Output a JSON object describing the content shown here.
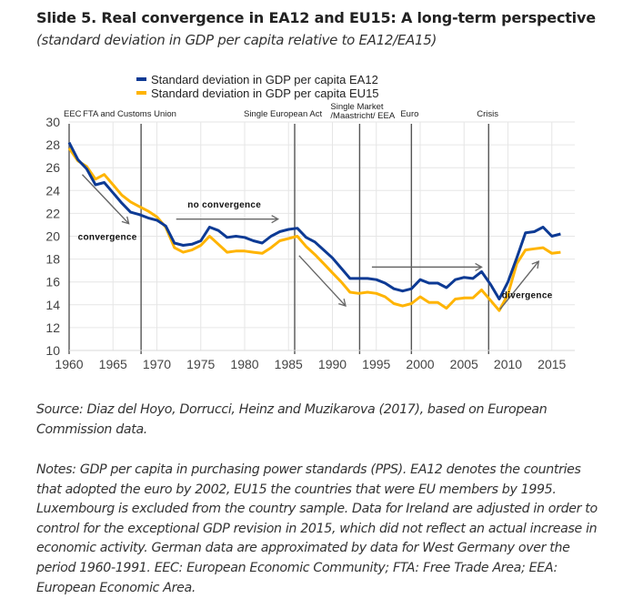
{
  "header": {
    "title": "Slide 5. Real convergence in EA12 and EU15: A long-term perspective",
    "subtitle": "(standard deviation in GDP per capita relative to EA12/EA15)"
  },
  "chart_data": {
    "type": "line",
    "title": "Slide 5. Real convergence in EA12 and EU15: A long-term perspective",
    "subtitle": "(standard deviation in GDP per capita relative to EA12/EA15)",
    "xlabel": "",
    "ylabel": "",
    "xlim": [
      1960,
      2017
    ],
    "ylim": [
      10,
      30
    ],
    "grid": true,
    "legend_position": "top-center",
    "x_ticks": [
      1960,
      1965,
      1970,
      1975,
      1980,
      1985,
      1990,
      1995,
      2000,
      2005,
      2010,
      2015
    ],
    "y_ticks": [
      10,
      12,
      14,
      16,
      18,
      20,
      22,
      24,
      26,
      28,
      30
    ],
    "x": [
      1960,
      1961,
      1962,
      1963,
      1964,
      1965,
      1966,
      1967,
      1968,
      1969,
      1970,
      1971,
      1972,
      1973,
      1974,
      1975,
      1976,
      1977,
      1978,
      1979,
      1980,
      1981,
      1982,
      1983,
      1984,
      1985,
      1986,
      1987,
      1988,
      1989,
      1990,
      1991,
      1992,
      1993,
      1994,
      1995,
      1996,
      1997,
      1998,
      1999,
      2000,
      2001,
      2002,
      2003,
      2004,
      2005,
      2006,
      2007,
      2008,
      2009,
      2010,
      2011,
      2012,
      2013,
      2014,
      2015,
      2016
    ],
    "series": [
      {
        "name": "Standard deviation in GDP per capita EA12",
        "color": "#0d3a94",
        "values": [
          28.2,
          26.7,
          25.9,
          24.5,
          24.7,
          23.8,
          22.9,
          22.1,
          21.9,
          21.6,
          21.4,
          20.9,
          19.4,
          19.2,
          19.3,
          19.6,
          20.8,
          20.5,
          19.9,
          20.0,
          19.9,
          19.6,
          19.4,
          20.0,
          20.4,
          20.6,
          20.7,
          19.9,
          19.5,
          18.8,
          18.1,
          17.2,
          16.3,
          16.3,
          16.3,
          16.2,
          15.9,
          15.4,
          15.2,
          15.4,
          16.2,
          15.9,
          15.9,
          15.5,
          16.2,
          16.4,
          16.3,
          16.9,
          15.8,
          14.5,
          16.0,
          18.1,
          20.3,
          20.4,
          20.8,
          20.0,
          20.2
        ]
      },
      {
        "name": "Standard deviation in GDP per capita EU15",
        "color": "#ffb400",
        "values": [
          27.7,
          26.6,
          26.1,
          25.0,
          25.4,
          24.5,
          23.6,
          23.0,
          22.6,
          22.2,
          21.7,
          20.8,
          19.0,
          18.6,
          18.8,
          19.2,
          20.0,
          19.3,
          18.6,
          18.7,
          18.7,
          18.6,
          18.5,
          19.0,
          19.6,
          19.8,
          20.0,
          19.1,
          18.4,
          17.6,
          16.8,
          16.0,
          15.1,
          15.0,
          15.1,
          15.0,
          14.7,
          14.1,
          13.9,
          14.1,
          14.7,
          14.2,
          14.2,
          13.7,
          14.5,
          14.6,
          14.6,
          15.3,
          14.4,
          13.5,
          14.9,
          17.6,
          18.8,
          18.9,
          19.0,
          18.5,
          18.6
        ]
      }
    ],
    "events": [
      {
        "year": 1960,
        "label": "EEC"
      },
      {
        "year": 1968.2,
        "label": "FTA and Customs Union"
      },
      {
        "year": 1985.7,
        "label": "Single European Act"
      },
      {
        "year": 1993.1,
        "label": "Single Market /Maastricht/ EEA"
      },
      {
        "year": 1999.0,
        "label": "Euro"
      },
      {
        "year": 2007.8,
        "label": "Crisis"
      }
    ],
    "annotations": [
      {
        "text": "convergence",
        "x": 1961,
        "y": 19.7
      },
      {
        "text": "no convergence",
        "x": 1973.5,
        "y": 22.5
      },
      {
        "text": "divergence",
        "x": 2009.3,
        "y": 14.6
      }
    ],
    "arrows": [
      {
        "from": [
          1961.5,
          25.4
        ],
        "to": [
          1966.8,
          21.1
        ]
      },
      {
        "from": [
          1972.2,
          21.5
        ],
        "to": [
          1983.8,
          21.5
        ]
      },
      {
        "from": [
          1986.2,
          18.3
        ],
        "to": [
          1991.5,
          13.9
        ]
      },
      {
        "from": [
          1994.5,
          17.3
        ],
        "to": [
          2007.0,
          17.3
        ]
      },
      {
        "from": [
          2009.1,
          13.6
        ],
        "to": [
          2013.5,
          17.8
        ]
      }
    ]
  },
  "footer": {
    "source": "Source: Diaz del Hoyo, Dorrucci, Heinz and Muzikarova (2017), based on European Commission data.",
    "notes": "Notes: GDP per capita in purchasing power standards (PPS). EA12 denotes the countries that adopted the euro by 2002, EU15 the countries that were EU members by 1995. Luxembourg is excluded from the country sample. Data for Ireland are adjusted in order to control for the exceptional GDP revision in 2015, which did not reflect an actual increase in economic activity. German data are approximated by data for West Germany over the period 1960-1991. EEC: European Economic Community; FTA: Free Trade Area; EEA: European Economic Area."
  }
}
